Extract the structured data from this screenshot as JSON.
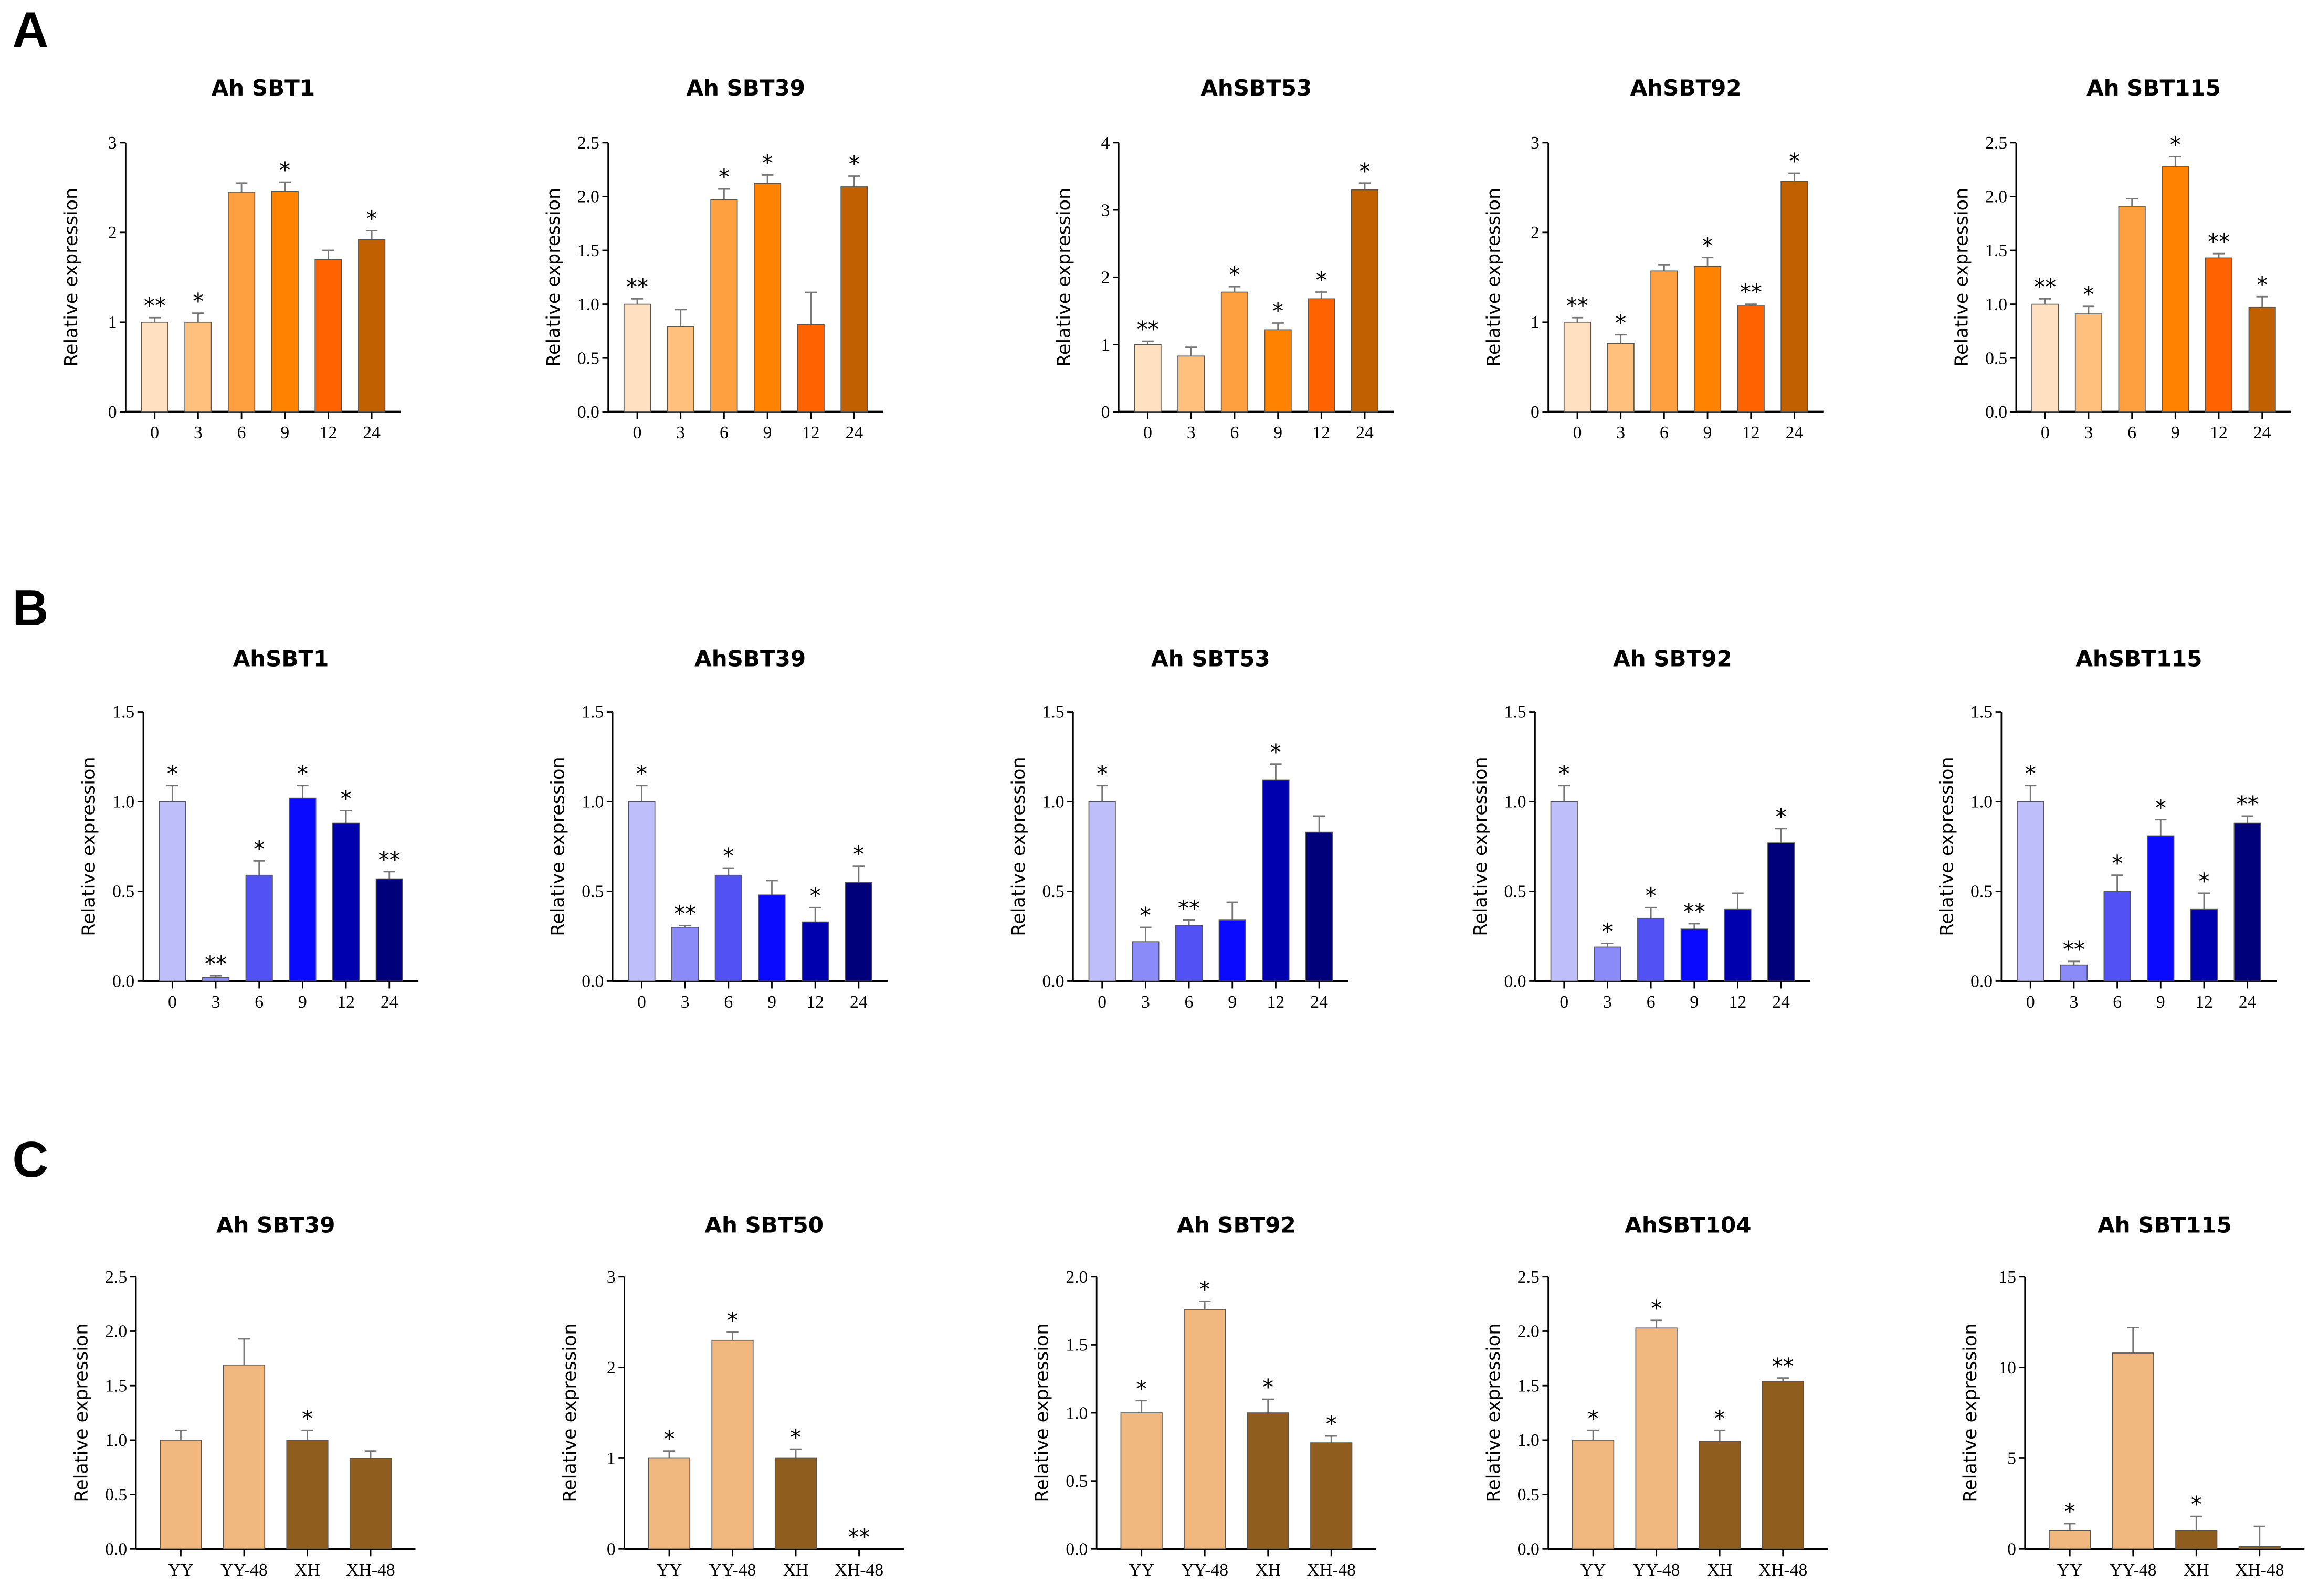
{
  "panels": [
    "A",
    "B",
    "C"
  ],
  "colors": {
    "A": [
      "#FFE0C0",
      "#FFC07E",
      "#FFA040",
      "#FF8200",
      "#FF6200",
      "#C06000"
    ],
    "B": [
      "#BEBEFA",
      "#8A8AF8",
      "#5252F4",
      "#0A0AFF",
      "#0000AE",
      "#00007A"
    ],
    "C": [
      "#F0B87F",
      "#F0B87F",
      "#8F5E1E",
      "#8F5E1E"
    ]
  },
  "chart_data": [
    {
      "type": "bar",
      "panel": "A",
      "title": "Ah SBT1",
      "ylabel": "Relative expression",
      "categories": [
        "0",
        "3",
        "6",
        "9",
        "12",
        "24"
      ],
      "ylim": [
        0,
        3
      ],
      "yticks": [
        "0",
        "1",
        "2",
        "3"
      ],
      "values": [
        1.0,
        1.0,
        2.45,
        2.46,
        1.7,
        1.92
      ],
      "errors": [
        0.05,
        0.1,
        0.1,
        0.1,
        0.1,
        0.1
      ],
      "significance": [
        "**",
        "*",
        "",
        "*",
        "",
        "*"
      ]
    },
    {
      "type": "bar",
      "panel": "A",
      "title": "Ah SBT39",
      "ylabel": "Relative expression",
      "categories": [
        "0",
        "3",
        "6",
        "9",
        "12",
        "24"
      ],
      "ylim": [
        0,
        2.5
      ],
      "yticks": [
        "0.0",
        "0.5",
        "1.0",
        "1.5",
        "2.0",
        "2.5"
      ],
      "values": [
        1.0,
        0.79,
        1.97,
        2.12,
        0.81,
        2.09
      ],
      "errors": [
        0.05,
        0.16,
        0.1,
        0.08,
        0.3,
        0.1
      ],
      "significance": [
        "**",
        "",
        "*",
        "*",
        "",
        "*"
      ]
    },
    {
      "type": "bar",
      "panel": "A",
      "title": "AhSBT53",
      "ylabel": "Relative expression",
      "categories": [
        "0",
        "3",
        "6",
        "9",
        "12",
        "24"
      ],
      "ylim": [
        0,
        4
      ],
      "yticks": [
        "0",
        "1",
        "2",
        "3",
        "4"
      ],
      "values": [
        1.0,
        0.83,
        1.78,
        1.22,
        1.68,
        3.3
      ],
      "errors": [
        0.05,
        0.13,
        0.08,
        0.1,
        0.1,
        0.1
      ],
      "significance": [
        "**",
        "",
        "*",
        "*",
        "*",
        "*"
      ]
    },
    {
      "type": "bar",
      "panel": "A",
      "title": "AhSBT92",
      "ylabel": "Relative expression",
      "categories": [
        "0",
        "3",
        "6",
        "9",
        "12",
        "24"
      ],
      "ylim": [
        0,
        3
      ],
      "yticks": [
        "0",
        "1",
        "2",
        "3"
      ],
      "values": [
        1.0,
        0.76,
        1.57,
        1.62,
        1.18,
        2.57
      ],
      "errors": [
        0.05,
        0.1,
        0.07,
        0.1,
        0.02,
        0.09
      ],
      "significance": [
        "**",
        "*",
        "",
        "*",
        "**",
        "*"
      ]
    },
    {
      "type": "bar",
      "panel": "A",
      "title": "Ah SBT115",
      "ylabel": "Relative expression",
      "categories": [
        "0",
        "3",
        "6",
        "9",
        "12",
        "24"
      ],
      "ylim": [
        0,
        2.5
      ],
      "yticks": [
        "0.0",
        "0.5",
        "1.0",
        "1.5",
        "2.0",
        "2.5"
      ],
      "values": [
        1.0,
        0.91,
        1.91,
        2.28,
        1.43,
        0.97
      ],
      "errors": [
        0.05,
        0.07,
        0.07,
        0.09,
        0.04,
        0.1
      ],
      "significance": [
        "**",
        "*",
        "",
        "*",
        "**",
        "*"
      ]
    },
    {
      "type": "bar",
      "panel": "B",
      "title": "AhSBT1",
      "ylabel": "Relative expression",
      "categories": [
        "0",
        "3",
        "6",
        "9",
        "12",
        "24"
      ],
      "ylim": [
        0,
        1.5
      ],
      "yticks": [
        "0.0",
        "0.5",
        "1.0",
        "1.5"
      ],
      "values": [
        1.0,
        0.02,
        0.59,
        1.02,
        0.88,
        0.57
      ],
      "errors": [
        0.09,
        0.01,
        0.08,
        0.07,
        0.07,
        0.04
      ],
      "significance": [
        "*",
        "**",
        "*",
        "*",
        "*",
        "**"
      ]
    },
    {
      "type": "bar",
      "panel": "B",
      "title": "AhSBT39",
      "ylabel": "Relative expression",
      "categories": [
        "0",
        "3",
        "6",
        "9",
        "12",
        "24"
      ],
      "ylim": [
        0,
        1.5
      ],
      "yticks": [
        "0.0",
        "0.5",
        "1.0",
        "1.5"
      ],
      "values": [
        1.0,
        0.3,
        0.59,
        0.48,
        0.33,
        0.55
      ],
      "errors": [
        0.09,
        0.01,
        0.04,
        0.08,
        0.08,
        0.09
      ],
      "significance": [
        "*",
        "**",
        "*",
        "",
        "*",
        "*"
      ]
    },
    {
      "type": "bar",
      "panel": "B",
      "title": "Ah SBT53",
      "ylabel": "Relative expression",
      "categories": [
        "0",
        "3",
        "6",
        "9",
        "12",
        "24"
      ],
      "ylim": [
        0,
        1.5
      ],
      "yticks": [
        "0.0",
        "0.5",
        "1.0",
        "1.5"
      ],
      "values": [
        1.0,
        0.22,
        0.31,
        0.34,
        1.12,
        0.83
      ],
      "errors": [
        0.09,
        0.08,
        0.03,
        0.1,
        0.09,
        0.09
      ],
      "significance": [
        "*",
        "*",
        "**",
        "",
        "*",
        ""
      ]
    },
    {
      "type": "bar",
      "panel": "B",
      "title": "Ah SBT92",
      "ylabel": "Relative expression",
      "categories": [
        "0",
        "3",
        "6",
        "9",
        "12",
        "24"
      ],
      "ylim": [
        0,
        1.5
      ],
      "yticks": [
        "0.0",
        "0.5",
        "1.0",
        "1.5"
      ],
      "values": [
        1.0,
        0.19,
        0.35,
        0.29,
        0.4,
        0.77
      ],
      "errors": [
        0.09,
        0.02,
        0.06,
        0.03,
        0.09,
        0.08
      ],
      "significance": [
        "*",
        "*",
        "*",
        "**",
        "",
        "*"
      ]
    },
    {
      "type": "bar",
      "panel": "B",
      "title": "AhSBT115",
      "ylabel": "Relative expression",
      "categories": [
        "0",
        "3",
        "6",
        "9",
        "12",
        "24"
      ],
      "ylim": [
        0,
        1.5
      ],
      "yticks": [
        "0.0",
        "0.5",
        "1.0",
        "1.5"
      ],
      "values": [
        1.0,
        0.09,
        0.5,
        0.81,
        0.4,
        0.88
      ],
      "errors": [
        0.09,
        0.02,
        0.09,
        0.09,
        0.09,
        0.04
      ],
      "significance": [
        "*",
        "**",
        "*",
        "*",
        "*",
        "**"
      ]
    },
    {
      "type": "bar",
      "panel": "C",
      "title": "Ah SBT39",
      "ylabel": "Relative expression",
      "categories": [
        "YY",
        "YY-48",
        "XH",
        "XH-48"
      ],
      "ylim": [
        0,
        2.5
      ],
      "yticks": [
        "0.0",
        "0.5",
        "1.0",
        "1.5",
        "2.0",
        "2.5"
      ],
      "values": [
        1.0,
        1.69,
        1.0,
        0.83
      ],
      "errors": [
        0.09,
        0.24,
        0.09,
        0.07
      ],
      "significance": [
        "",
        "",
        "*",
        ""
      ]
    },
    {
      "type": "bar",
      "panel": "C",
      "title": "Ah SBT50",
      "ylabel": "Relative expression",
      "categories": [
        "YY",
        "YY-48",
        "XH",
        "XH-48"
      ],
      "ylim": [
        0,
        3
      ],
      "yticks": [
        "0",
        "1",
        "2",
        "3"
      ],
      "values": [
        1.0,
        2.3,
        1.0,
        0.0
      ],
      "errors": [
        0.08,
        0.09,
        0.1,
        0
      ],
      "significance": [
        "*",
        "*",
        "*",
        "**"
      ]
    },
    {
      "type": "bar",
      "panel": "C",
      "title": "Ah SBT92",
      "ylabel": "Relative expression",
      "categories": [
        "YY",
        "YY-48",
        "XH",
        "XH-48"
      ],
      "ylim": [
        0,
        2.0
      ],
      "yticks": [
        "0.0",
        "0.5",
        "1.0",
        "1.5",
        "2.0"
      ],
      "values": [
        1.0,
        1.76,
        1.0,
        0.78
      ],
      "errors": [
        0.09,
        0.06,
        0.1,
        0.05
      ],
      "significance": [
        "*",
        "*",
        "*",
        "*"
      ]
    },
    {
      "type": "bar",
      "panel": "C",
      "title": "AhSBT104",
      "ylabel": "Relative expression",
      "categories": [
        "YY",
        "YY-48",
        "XH",
        "XH-48"
      ],
      "ylim": [
        0,
        2.5
      ],
      "yticks": [
        "0.0",
        "0.5",
        "1.0",
        "1.5",
        "2.0",
        "2.5"
      ],
      "values": [
        1.0,
        2.03,
        0.99,
        1.54
      ],
      "errors": [
        0.09,
        0.07,
        0.1,
        0.03
      ],
      "significance": [
        "*",
        "*",
        "*",
        "**"
      ]
    },
    {
      "type": "bar",
      "panel": "C",
      "title": "Ah SBT115",
      "ylabel": "Relative expression",
      "categories": [
        "YY",
        "YY-48",
        "XH",
        "XH-48"
      ],
      "ylim": [
        0,
        15
      ],
      "yticks": [
        "0",
        "5",
        "10",
        "15"
      ],
      "values": [
        1.0,
        10.8,
        1.0,
        0.15
      ],
      "errors": [
        0.4,
        1.4,
        0.8,
        1.1
      ],
      "significance": [
        "*",
        "",
        "*",
        ""
      ]
    }
  ]
}
